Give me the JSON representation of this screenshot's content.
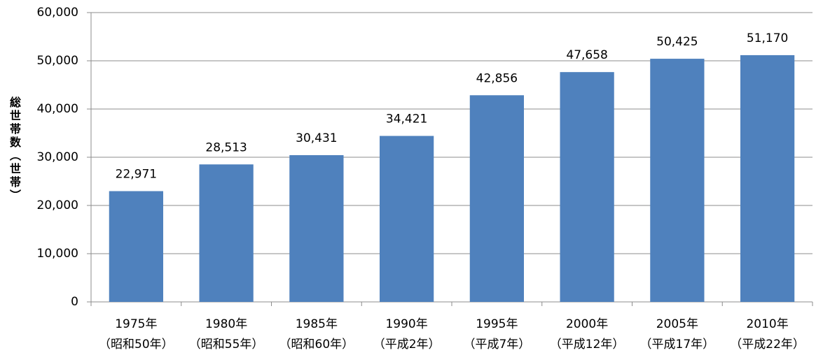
{
  "chart_data": {
    "type": "bar",
    "y_label": "総世帯数（世帯）",
    "categories": [
      "1975年\n（昭和50年）",
      "1980年\n（昭和55年）",
      "1985年\n（昭和60年）",
      "1990年\n（平成2年）",
      "1995年\n（平成7年）",
      "2000年\n（平成12年）",
      "2005年\n（平成17年）",
      "2010年\n（平成22年）"
    ],
    "values": [
      22971,
      28513,
      30431,
      34421,
      42856,
      47658,
      50425,
      51170
    ],
    "value_labels": [
      "22,971",
      "28,513",
      "30,431",
      "34,421",
      "42,856",
      "47,658",
      "50,425",
      "51,170"
    ],
    "color": "#4f81bd",
    "ylim": [
      0,
      60000
    ],
    "yticks": [
      0,
      {
        "value": 10000,
        "label": "10,000"
      },
      {
        "value": 20000,
        "label": "20,000"
      },
      {
        "value": 30000,
        "label": "30,000"
      },
      {
        "value": 40000,
        "label": "40,000"
      },
      {
        "value": 50000,
        "label": "50,000"
      },
      {
        "value": 60000,
        "label": "60,000"
      }
    ],
    "grid": true
  }
}
